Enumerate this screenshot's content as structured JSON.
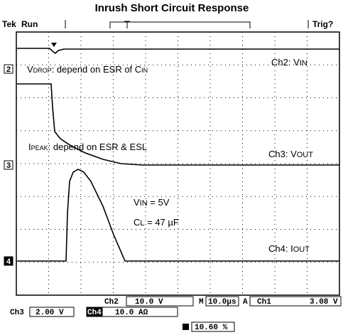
{
  "title": "Inrush Short Circuit Response",
  "status": {
    "brand": "Tek",
    "mode": "Run",
    "trigger": "Trig?"
  },
  "channel_markers": [
    "2",
    "3",
    "4"
  ],
  "annotations": [
    {
      "parts": [
        [
          "V",
          false
        ],
        [
          "DROP",
          true
        ],
        [
          ": depend on ESR of C",
          false
        ],
        [
          "IN",
          true
        ]
      ]
    },
    {
      "parts": [
        [
          "Ch2: V",
          false
        ],
        [
          "IN",
          true
        ]
      ]
    },
    {
      "parts": [
        [
          "I",
          false
        ],
        [
          "PEAK",
          true
        ],
        [
          ": depend on ESR & ESL",
          false
        ]
      ]
    },
    {
      "parts": [
        [
          "Ch3: V",
          false
        ],
        [
          "OUT",
          true
        ]
      ]
    },
    {
      "parts": [
        [
          "V",
          false
        ],
        [
          "IN",
          true
        ],
        [
          " = 5V",
          false
        ]
      ]
    },
    {
      "parts": [
        [
          "C",
          false
        ],
        [
          "L",
          true
        ],
        [
          " = 47 µF",
          false
        ]
      ]
    },
    {
      "parts": [
        [
          "Ch4: I",
          false
        ],
        [
          "OUT",
          true
        ]
      ]
    }
  ],
  "readouts": {
    "ch2": "Ch2",
    "ch2_scale": "10.0 V",
    "timebase_label": "M",
    "timebase": "10.0µs",
    "acq": "A",
    "trig_src": "Ch1",
    "trig_level": "3.08 V",
    "ch3": "Ch3",
    "ch3_scale": "2.00 V",
    "ch4": "Ch4",
    "ch4_scale": "10.0 AΩ",
    "position": "10.60 %"
  }
}
